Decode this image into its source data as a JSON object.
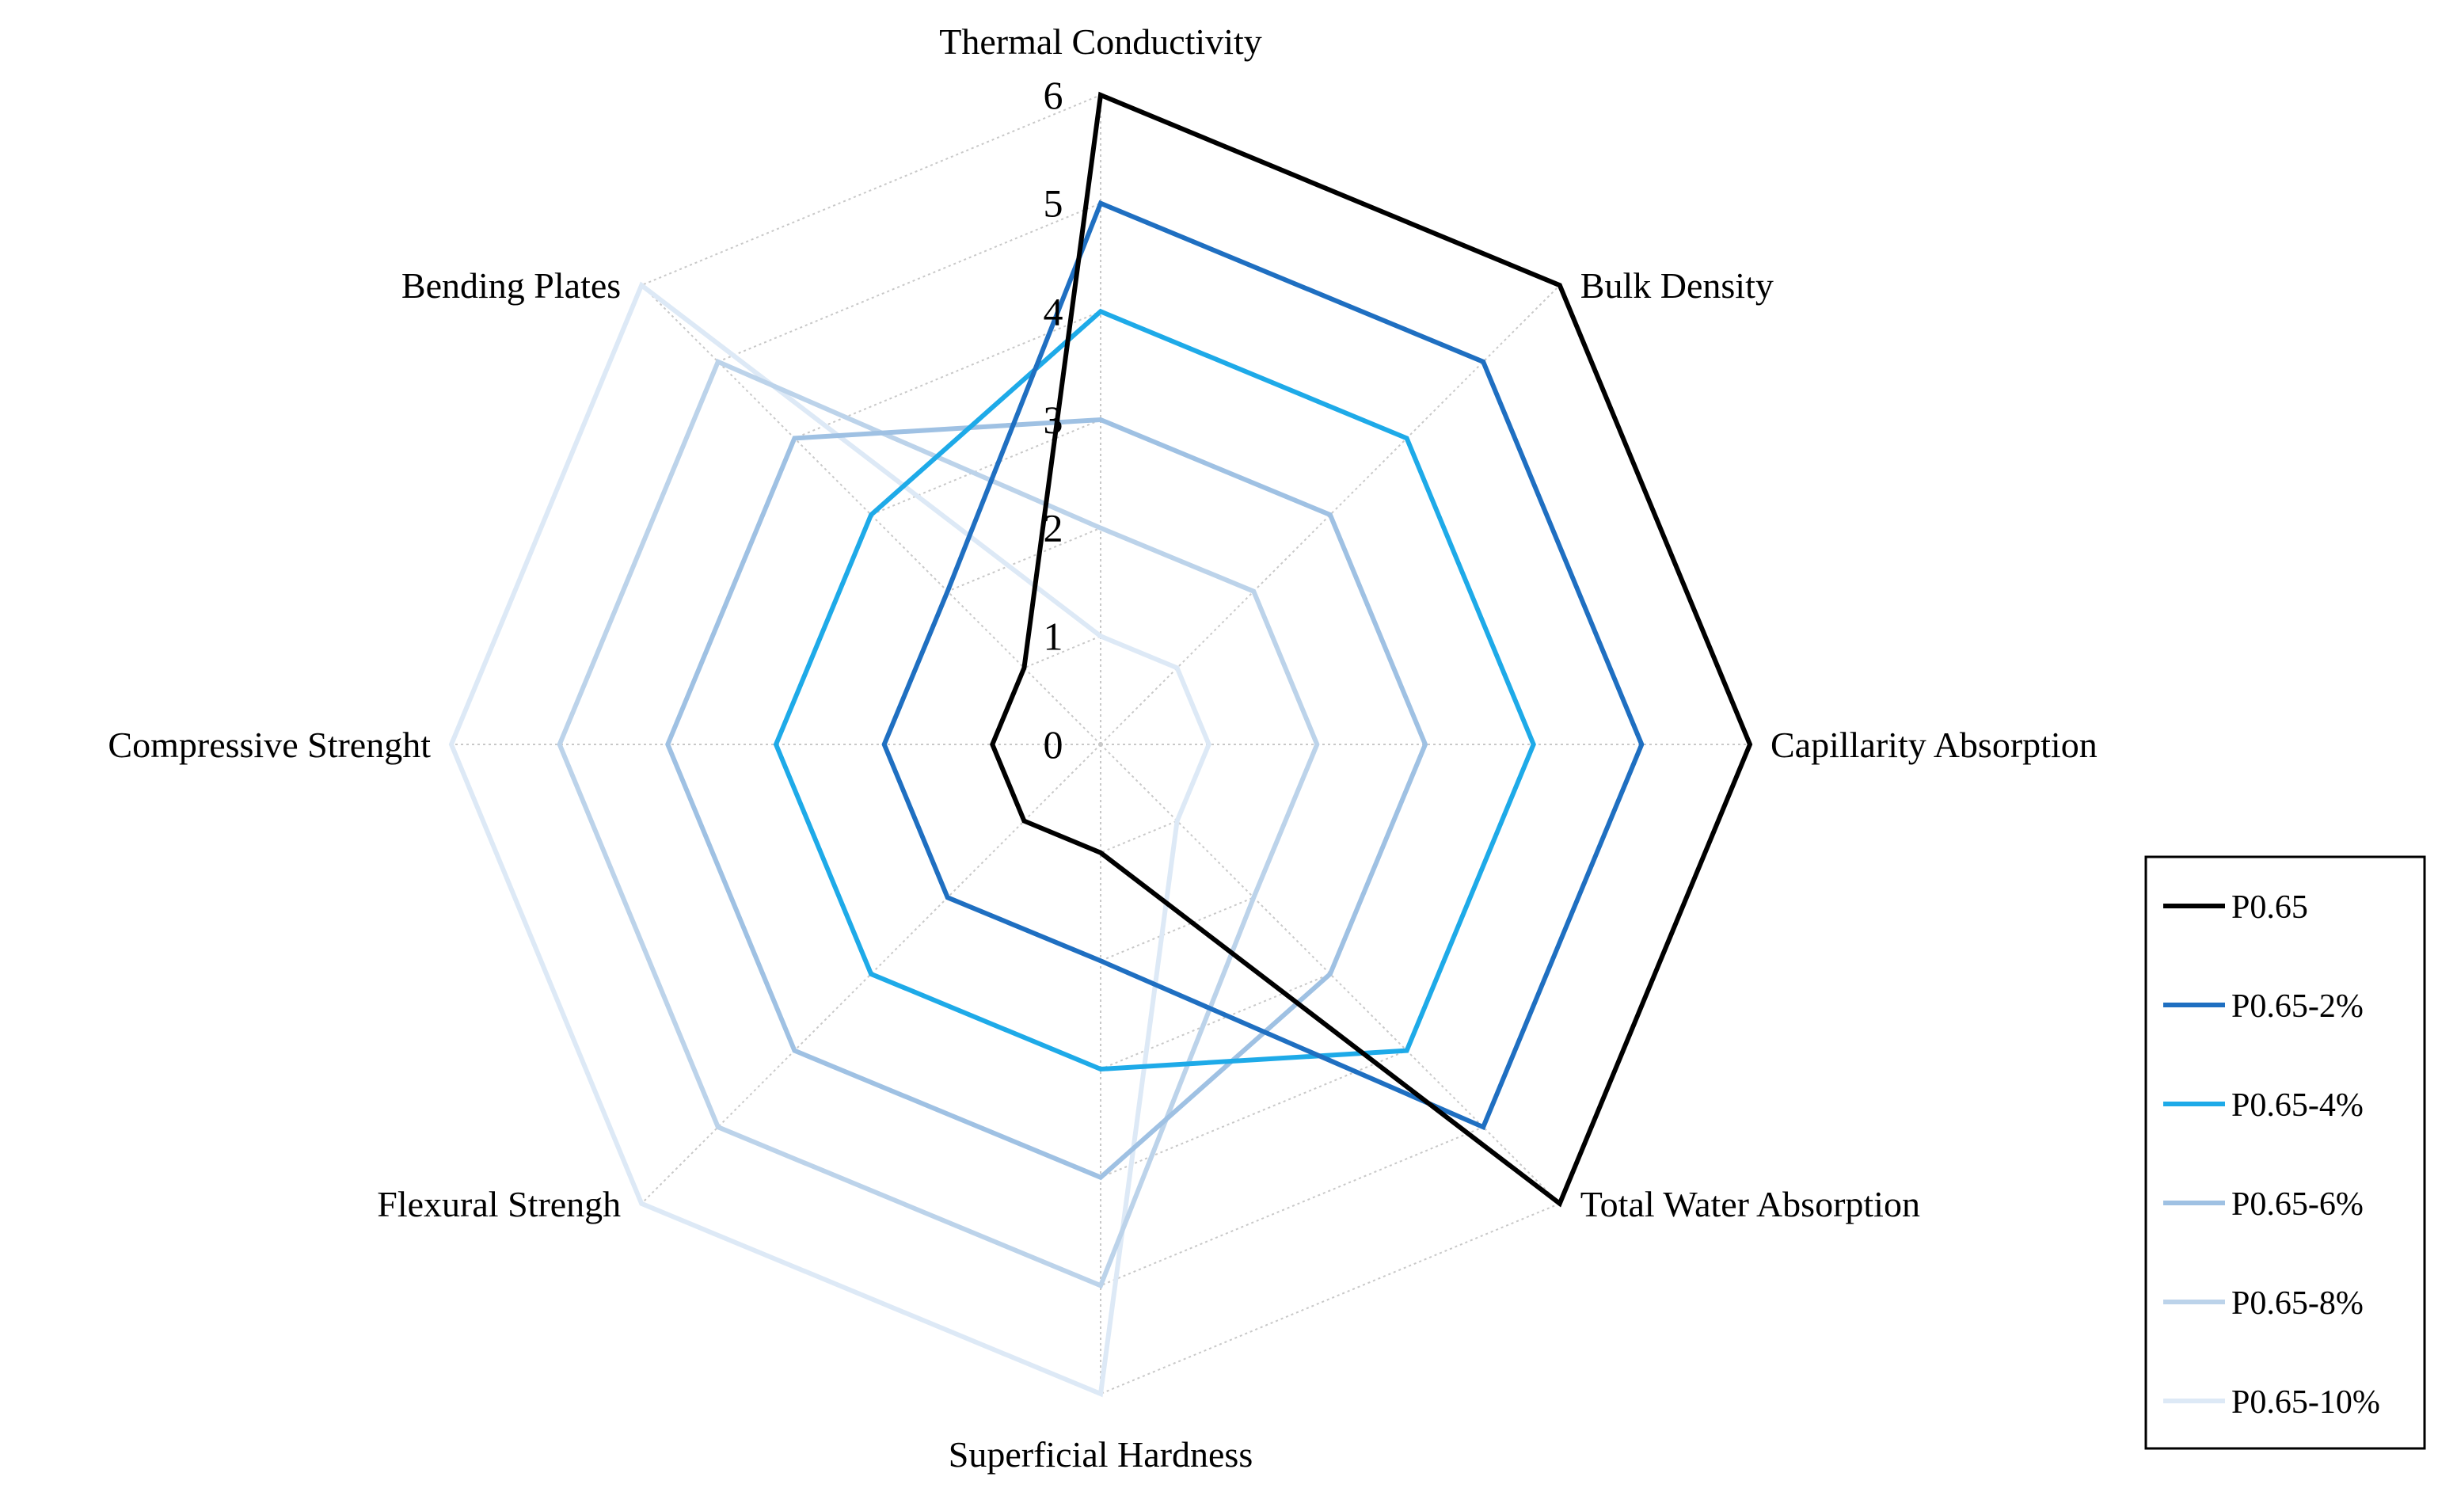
{
  "chart_data": {
    "type": "radar",
    "title": "",
    "axes": [
      "Thermal Conductivity",
      "Bulk Density",
      "Capillarity Absorption",
      "Total Water Absorption",
      "Superficial Hardness",
      "Flexural Strengh",
      "Compressive Strenght",
      "Bending Plates"
    ],
    "rlim": [
      0,
      6
    ],
    "ticks": [
      "0",
      "1",
      "2",
      "3",
      "4",
      "5",
      "6"
    ],
    "grid": "dotted",
    "legend_position": "bottom-right",
    "series": [
      {
        "name": "P0.65",
        "color": "#000000",
        "values": [
          6,
          6,
          6,
          6,
          1,
          1,
          1,
          1
        ]
      },
      {
        "name": "P0.65-2%",
        "color": "#1f6fc1",
        "values": [
          5,
          5,
          5,
          5,
          2,
          2,
          2,
          2
        ]
      },
      {
        "name": "P0.65-4%",
        "color": "#1eaae8",
        "values": [
          4,
          4,
          4,
          4,
          3,
          3,
          3,
          3
        ]
      },
      {
        "name": "P0.65-6%",
        "color": "#9fc1e3",
        "values": [
          3,
          3,
          3,
          3,
          4,
          4,
          4,
          4
        ]
      },
      {
        "name": "P0.65-8%",
        "color": "#bcd3ea",
        "values": [
          2,
          2,
          2,
          2,
          5,
          5,
          5,
          5
        ]
      },
      {
        "name": "P0.65-10%",
        "color": "#dde9f6",
        "values": [
          1,
          1,
          1,
          1,
          6,
          6,
          6,
          6
        ]
      }
    ]
  }
}
